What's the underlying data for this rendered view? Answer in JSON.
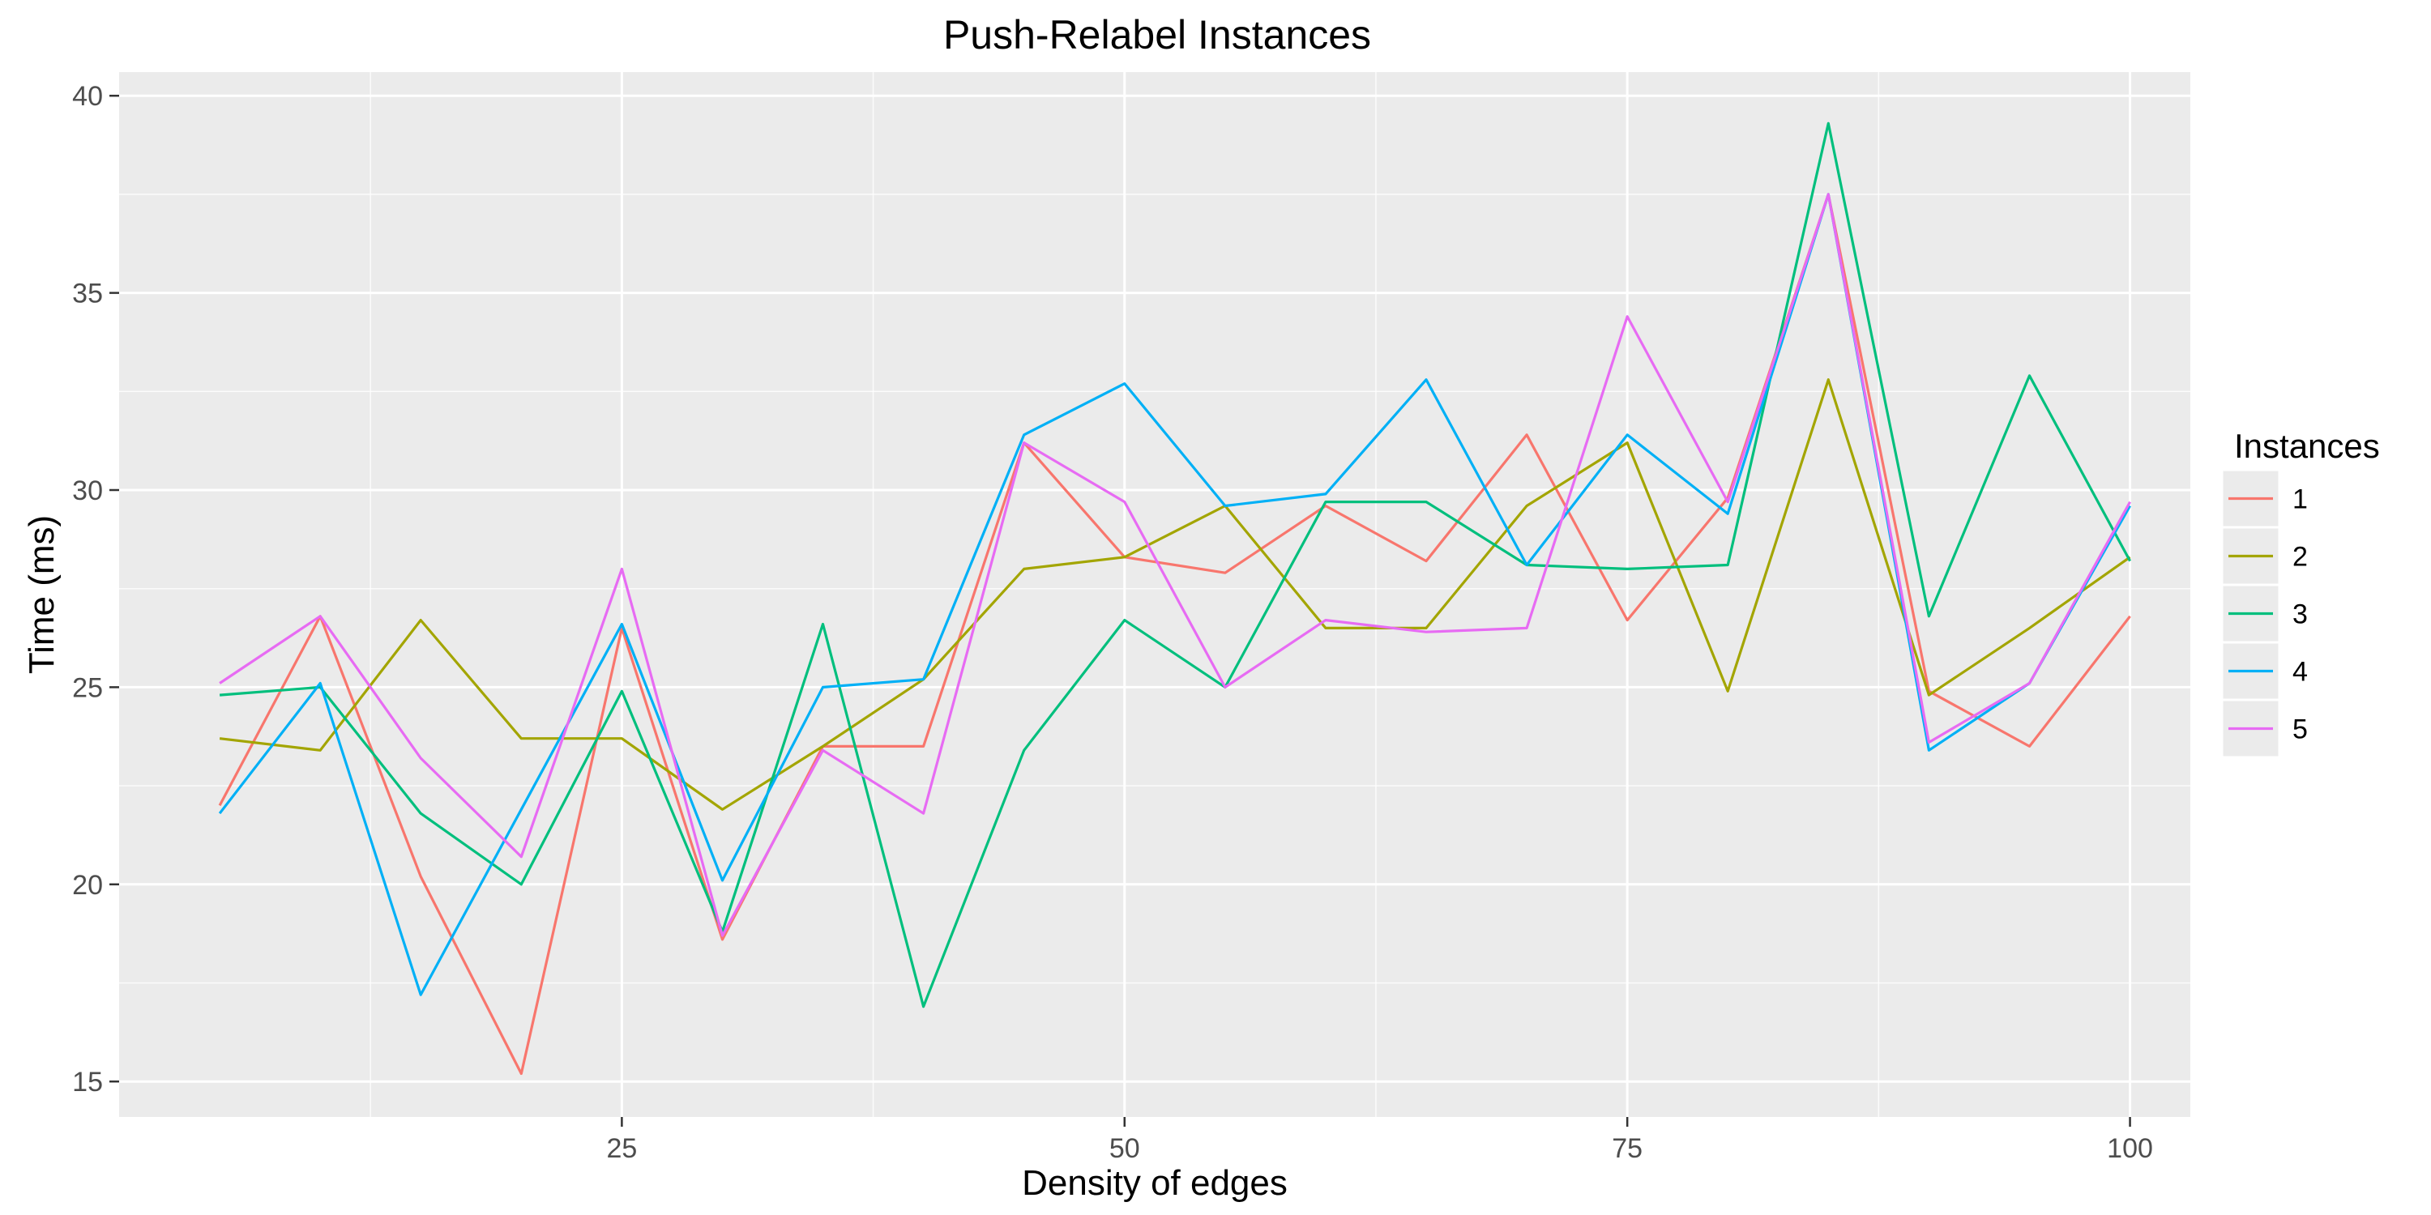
{
  "chart_data": {
    "type": "line",
    "title": "Push-Relabel Instances",
    "xlabel": "Density of edges",
    "ylabel": "Time (ms)",
    "xlim": [
      0,
      103
    ],
    "ylim": [
      14.1,
      40.6
    ],
    "xticks": [
      25,
      50,
      75,
      100
    ],
    "yticks": [
      15,
      20,
      25,
      30,
      35,
      40
    ],
    "grid": true,
    "legend": {
      "title": "Instances",
      "position": "right"
    },
    "x": [
      5,
      10,
      15,
      20,
      25,
      30,
      35,
      40,
      45,
      50,
      55,
      60,
      65,
      70,
      75,
      80,
      85,
      90,
      95,
      100
    ],
    "series": [
      {
        "name": "1",
        "color": "#F8766D",
        "values": [
          22.0,
          26.8,
          20.2,
          15.2,
          26.5,
          18.6,
          23.5,
          23.5,
          31.2,
          28.3,
          27.9,
          29.6,
          28.2,
          31.4,
          26.7,
          29.8,
          37.5,
          24.9,
          23.5,
          26.8
        ]
      },
      {
        "name": "2",
        "color": "#A3A500",
        "values": [
          23.7,
          23.4,
          26.7,
          23.7,
          23.7,
          21.9,
          23.5,
          25.2,
          28.0,
          28.3,
          29.6,
          26.5,
          26.5,
          29.6,
          31.2,
          24.9,
          32.8,
          24.8,
          26.5,
          28.3
        ]
      },
      {
        "name": "3",
        "color": "#00BF7D",
        "values": [
          24.8,
          25.0,
          21.8,
          20.0,
          24.9,
          18.8,
          26.6,
          16.9,
          23.4,
          26.7,
          25.0,
          29.7,
          29.7,
          28.1,
          28.0,
          28.1,
          39.3,
          26.8,
          32.9,
          28.2
        ]
      },
      {
        "name": "4",
        "color": "#00B0F6",
        "values": [
          21.8,
          25.1,
          17.2,
          21.9,
          26.6,
          20.1,
          25.0,
          25.2,
          31.4,
          32.7,
          29.6,
          29.9,
          32.8,
          28.1,
          31.4,
          29.4,
          37.5,
          23.4,
          25.1,
          29.6
        ]
      },
      {
        "name": "5",
        "color": "#E76BF3",
        "values": [
          25.1,
          26.8,
          23.2,
          20.7,
          28.0,
          18.7,
          23.4,
          21.8,
          31.2,
          29.7,
          25.0,
          26.7,
          26.4,
          26.5,
          34.4,
          29.7,
          37.5,
          23.6,
          25.1,
          29.7
        ]
      }
    ]
  },
  "colors": {
    "panel_background": "#EBEBEB",
    "grid_major": "#FFFFFF",
    "tick_color": "#333333"
  }
}
